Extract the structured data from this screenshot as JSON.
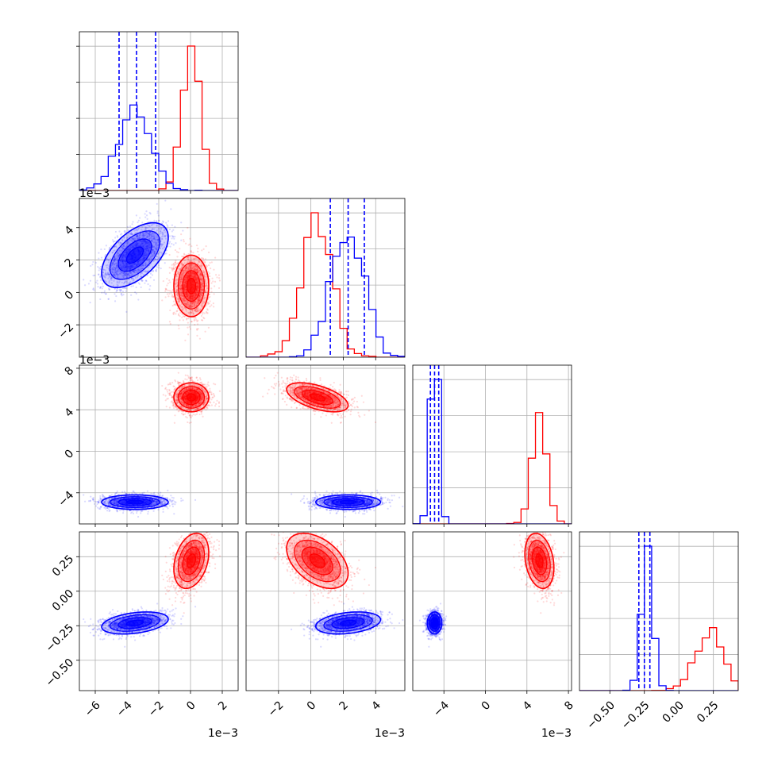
{
  "chart_data": {
    "type": "scatter",
    "title": "",
    "layout": "corner",
    "grid": true,
    "colors": {
      "series_a": "#0000ff",
      "series_b": "#ff0000"
    },
    "dimensions": [
      {
        "name": "",
        "range": [
          -7.0,
          3.0
        ],
        "ticks": [
          -6,
          -4,
          -2,
          0,
          2
        ],
        "tick_labels": [
          "−6",
          "−4",
          "−2",
          "0",
          "2"
        ],
        "offset_label": "1e−3",
        "mean_a": -3.5,
        "sd_a": 1.05,
        "mean_b": 0.05,
        "sd_b": 0.55
      },
      {
        "name": "",
        "range": [
          -4.0,
          5.8
        ],
        "ticks": [
          -2,
          0,
          2,
          4
        ],
        "tick_labels": [
          "−2",
          "0",
          "2",
          "4"
        ],
        "offset_label": "1e−3",
        "mean_a": 2.3,
        "sd_a": 1.0,
        "mean_b": 0.4,
        "sd_b": 0.95
      },
      {
        "name": "",
        "range": [
          -7.0,
          8.3
        ],
        "ticks": [
          -4,
          0,
          4,
          8
        ],
        "tick_labels": [
          "−4",
          "0",
          "4",
          "8"
        ],
        "offset_label": "1e−3",
        "mean_a": -4.9,
        "sd_a": 0.35,
        "mean_b": 5.2,
        "sd_b": 0.7
      },
      {
        "name": "",
        "range": [
          -0.72,
          0.43
        ],
        "ticks": [
          -0.5,
          -0.25,
          0.0,
          0.25
        ],
        "tick_labels": [
          "−0.50",
          "−0.25",
          "0.00",
          "0.25"
        ],
        "offset_label": "",
        "mean_a": -0.23,
        "sd_a": 0.04,
        "mean_b": 0.22,
        "sd_b": 0.1
      }
    ],
    "quantiles_a": [
      [
        -4.5,
        -3.4,
        -2.2
      ],
      [
        1.2,
        2.3,
        3.3
      ],
      [
        -5.3,
        -4.9,
        -4.5
      ],
      [
        -0.29,
        -0.25,
        -0.21
      ]
    ],
    "correlation_a": [
      [
        1,
        0.55,
        0,
        0.35
      ],
      [
        0.55,
        1,
        0,
        0.3
      ],
      [
        0,
        0,
        1,
        0
      ],
      [
        0.35,
        0.3,
        0,
        1
      ]
    ],
    "correlation_b": [
      [
        1,
        0,
        0,
        0.3
      ],
      [
        0,
        1,
        -0.55,
        -0.45
      ],
      [
        0,
        -0.55,
        1,
        -0.25
      ],
      [
        0.3,
        -0.45,
        -0.25,
        1
      ]
    ]
  }
}
